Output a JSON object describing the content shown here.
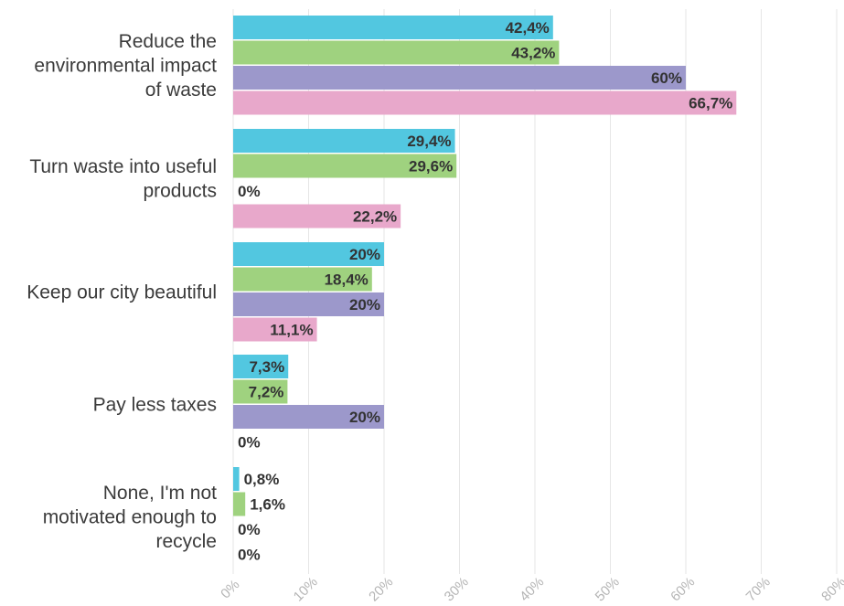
{
  "chart_data": {
    "type": "bar",
    "orientation": "horizontal",
    "categories": [
      "Reduce the environmental impact of waste",
      "Turn waste into useful products",
      "Keep our city beautiful",
      "Pay less taxes",
      "None, I'm not motivated enough to recycle"
    ],
    "category_lines": [
      [
        "Reduce the",
        "environmental impact",
        "of waste"
      ],
      [
        "Turn waste into useful",
        "products"
      ],
      [
        "Keep our city beautiful"
      ],
      [
        "Pay less taxes"
      ],
      [
        "None, I'm not",
        "motivated enough to",
        "recycle"
      ]
    ],
    "series": [
      {
        "color": "#52c7e0",
        "values": [
          42.4,
          29.4,
          20,
          7.3,
          0.8
        ],
        "labels": [
          "42,4%",
          "29,4%",
          "20%",
          "7,3%",
          "0,8%"
        ]
      },
      {
        "color": "#9fd27f",
        "values": [
          43.2,
          29.6,
          18.4,
          7.2,
          1.6
        ],
        "labels": [
          "43,2%",
          "29,6%",
          "18,4%",
          "7,2%",
          "1,6%"
        ]
      },
      {
        "color": "#9c98cb",
        "values": [
          60,
          0,
          20,
          20,
          0
        ],
        "labels": [
          "60%",
          "0%",
          "20%",
          "20%",
          "0%"
        ]
      },
      {
        "color": "#e8a8cb",
        "values": [
          66.7,
          22.2,
          11.1,
          0,
          0
        ],
        "labels": [
          "66,7%",
          "22,2%",
          "11,1%",
          "0%",
          "0%"
        ]
      }
    ],
    "xlim": [
      0,
      80
    ],
    "ticks": [
      0,
      10,
      20,
      30,
      40,
      50,
      60,
      70,
      80
    ],
    "tick_labels": [
      "0%",
      "10%",
      "20%",
      "30%",
      "40%",
      "50%",
      "60%",
      "70%",
      "80%"
    ],
    "grid": true,
    "legend": "none",
    "title": "",
    "xlabel": "",
    "ylabel": ""
  }
}
